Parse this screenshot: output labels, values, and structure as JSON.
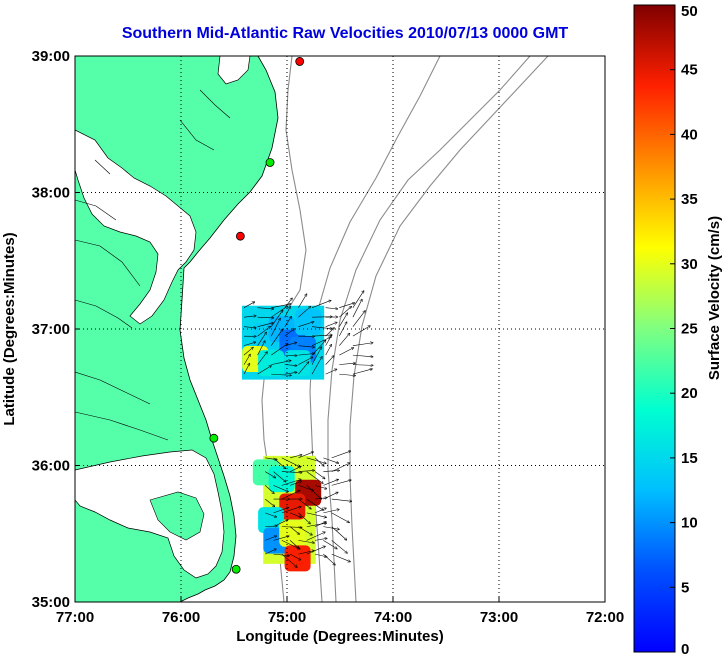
{
  "chart_data": {
    "type": "heatmap",
    "title": "Southern Mid-Atlantic Raw Velocities 2010/07/13 0000 GMT",
    "xlabel": "Longitude (Degrees:Minutes)",
    "ylabel": "Latitude (Degrees:Minutes)",
    "colorbar_label": "Surface Velocity (cm/s)",
    "x_ticks": [
      {
        "value": -77,
        "label": "77:00"
      },
      {
        "value": -76,
        "label": "76:00"
      },
      {
        "value": -75,
        "label": "75:00"
      },
      {
        "value": -74,
        "label": "74:00"
      },
      {
        "value": -73,
        "label": "73:00"
      },
      {
        "value": -72,
        "label": "72:00"
      }
    ],
    "y_ticks": [
      {
        "value": 35,
        "label": "35:00"
      },
      {
        "value": 36,
        "label": "36:00"
      },
      {
        "value": 37,
        "label": "37:00"
      },
      {
        "value": 38,
        "label": "38:00"
      },
      {
        "value": 39,
        "label": "39:00"
      }
    ],
    "xlim": [
      -77,
      -72
    ],
    "ylim": [
      35,
      39
    ],
    "colorbar_range": [
      0,
      50
    ],
    "colorbar_ticks": [
      {
        "value": 0,
        "label": "0"
      },
      {
        "value": 5,
        "label": "5"
      },
      {
        "value": 10,
        "label": "10"
      },
      {
        "value": 15,
        "label": "15"
      },
      {
        "value": 20,
        "label": "20"
      },
      {
        "value": 25,
        "label": "25"
      },
      {
        "value": 30,
        "label": "30"
      },
      {
        "value": 35,
        "label": "35"
      },
      {
        "value": 40,
        "label": "40"
      },
      {
        "value": 45,
        "label": "45"
      },
      {
        "value": 50,
        "label": "50"
      }
    ],
    "grid": true,
    "colormap": "jet",
    "stations": [
      {
        "lon": -74.88,
        "lat": 38.96,
        "status": "red"
      },
      {
        "lon": -75.16,
        "lat": 38.22,
        "status": "green"
      },
      {
        "lon": -75.44,
        "lat": 37.68,
        "status": "red"
      },
      {
        "lon": -75.69,
        "lat": 36.2,
        "status": "green"
      },
      {
        "lon": -75.48,
        "lat": 35.24,
        "status": "green"
      }
    ],
    "velocity_fields": [
      {
        "name": "north",
        "lon_range": [
          -75.5,
          -74.25
        ],
        "lat_range": [
          36.6,
          37.2
        ],
        "cells": [
          {
            "lon": -75.2,
            "lat": 36.95,
            "v": 14
          },
          {
            "lon": -75.05,
            "lat": 37.0,
            "v": 12
          },
          {
            "lon": -74.95,
            "lat": 36.9,
            "v": 8
          },
          {
            "lon": -74.85,
            "lat": 36.85,
            "v": 9
          },
          {
            "lon": -75.3,
            "lat": 36.78,
            "v": 30
          },
          {
            "lon": -75.15,
            "lat": 36.75,
            "v": 17
          },
          {
            "lon": -74.9,
            "lat": 36.75,
            "v": 16
          },
          {
            "lon": -74.8,
            "lat": 37.05,
            "v": 13
          }
        ]
      },
      {
        "name": "south",
        "lon_range": [
          -75.3,
          -74.5
        ],
        "lat_range": [
          35.25,
          36.1
        ],
        "cells": [
          {
            "lon": -75.2,
            "lat": 35.95,
            "v": 22
          },
          {
            "lon": -75.05,
            "lat": 35.9,
            "v": 18
          },
          {
            "lon": -74.8,
            "lat": 35.8,
            "v": 48
          },
          {
            "lon": -74.95,
            "lat": 35.7,
            "v": 45
          },
          {
            "lon": -75.15,
            "lat": 35.6,
            "v": 16
          },
          {
            "lon": -75.1,
            "lat": 35.45,
            "v": 10
          },
          {
            "lon": -74.95,
            "lat": 35.5,
            "v": 30
          },
          {
            "lon": -74.9,
            "lat": 35.32,
            "v": 44
          }
        ]
      }
    ]
  }
}
